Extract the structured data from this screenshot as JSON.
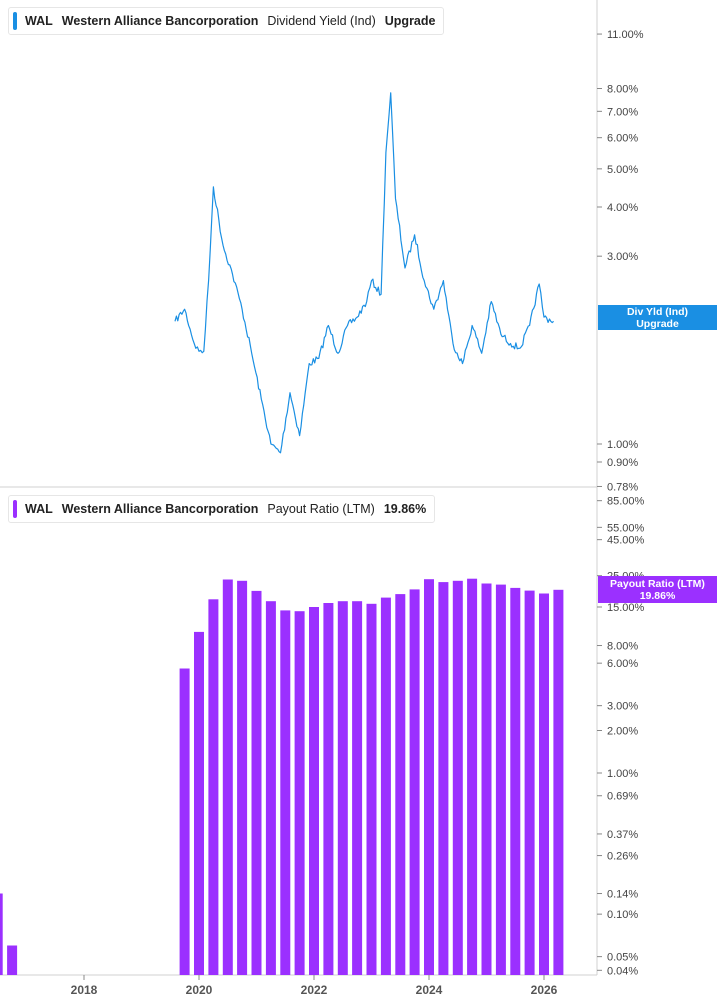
{
  "top_legend": {
    "ticker": "WAL",
    "company": "Western Alliance Bancorporation",
    "metric": "Dividend Yield (Ind)",
    "extra": "Upgrade",
    "color": "#1a8fe3"
  },
  "bottom_legend": {
    "ticker": "WAL",
    "company": "Western Alliance Bancorporation",
    "metric": "Payout Ratio (LTM)",
    "extra": "19.86%",
    "color": "#9b30ff"
  },
  "top_tag": {
    "line1": "Div Yld (Ind)",
    "line2": "Upgrade",
    "color": "#1a8fe3"
  },
  "bottom_tag": {
    "line1": "Payout Ratio (LTM)",
    "line2": "19.86%",
    "color": "#9b30ff"
  },
  "chart_data": [
    {
      "type": "line",
      "series": [
        {
          "name": "Dividend Yield (Ind)",
          "color": "#1a8fe3",
          "x": [
            "2019-08",
            "2019-10",
            "2019-12",
            "2020-01",
            "2020-02",
            "2020-03",
            "2020-04",
            "2020-06",
            "2020-08",
            "2020-10",
            "2020-12",
            "2021-02",
            "2021-04",
            "2021-06",
            "2021-08",
            "2021-10",
            "2021-12",
            "2022-02",
            "2022-04",
            "2022-06",
            "2022-08",
            "2022-10",
            "2022-12",
            "2023-01",
            "2023-03",
            "2023-04",
            "2023-05",
            "2023-06",
            "2023-08",
            "2023-10",
            "2023-12",
            "2024-02",
            "2024-04",
            "2024-06",
            "2024-08",
            "2024-10",
            "2024-12",
            "2025-02",
            "2025-04",
            "2025-06",
            "2025-08",
            "2025-10",
            "2025-12",
            "2026-01",
            "2026-03"
          ],
          "y": [
            2.05,
            2.2,
            1.8,
            1.72,
            1.72,
            2.6,
            4.5,
            3.2,
            2.7,
            2.2,
            1.7,
            1.3,
            1.0,
            0.95,
            1.35,
            1.05,
            1.6,
            1.65,
            2.0,
            1.7,
            2.0,
            2.1,
            2.3,
            2.6,
            2.4,
            5.5,
            7.8,
            4.2,
            2.8,
            3.4,
            2.6,
            2.2,
            2.6,
            1.8,
            1.6,
            2.0,
            1.7,
            2.3,
            1.9,
            1.8,
            1.75,
            2.0,
            2.55,
            2.1,
            2.05
          ]
        }
      ],
      "yticks": [
        "11.00%",
        "8.00%",
        "7.00%",
        "6.00%",
        "5.00%",
        "4.00%",
        "3.00%",
        "1.00%",
        "0.90%",
        "0.78%"
      ],
      "scale": "log"
    },
    {
      "type": "bar",
      "series": [
        {
          "name": "Payout Ratio (LTM)",
          "color": "#9b30ff",
          "x": [
            "2016-07",
            "2016-10",
            "2019-10",
            "2020-01",
            "2020-04",
            "2020-07",
            "2020-10",
            "2021-01",
            "2021-04",
            "2021-07",
            "2021-10",
            "2022-01",
            "2022-04",
            "2022-07",
            "2022-10",
            "2023-01",
            "2023-04",
            "2023-07",
            "2023-10",
            "2024-01",
            "2024-04",
            "2024-07",
            "2024-10",
            "2025-01",
            "2025-04",
            "2025-07",
            "2025-10",
            "2026-01",
            "2026-04"
          ],
          "values": [
            0.14,
            0.06,
            5.5,
            10.0,
            17.0,
            23.5,
            23.0,
            19.5,
            16.5,
            14.2,
            14.0,
            15.0,
            16.0,
            16.5,
            16.5,
            15.8,
            17.5,
            18.5,
            20.0,
            23.6,
            22.5,
            23.0,
            23.8,
            22.0,
            21.6,
            20.5,
            19.6,
            18.7,
            19.86
          ]
        }
      ],
      "yticks": [
        "85.00%",
        "55.00%",
        "45.00%",
        "25.00%",
        "15.00%",
        "8.00%",
        "6.00%",
        "3.00%",
        "2.00%",
        "1.00%",
        "0.69%",
        "0.37%",
        "0.26%",
        "0.14%",
        "0.10%",
        "0.05%",
        "0.04%"
      ],
      "scale": "log"
    }
  ],
  "x_axis": {
    "labels": [
      "2018",
      "2020",
      "2022",
      "2024",
      "2026"
    ]
  }
}
